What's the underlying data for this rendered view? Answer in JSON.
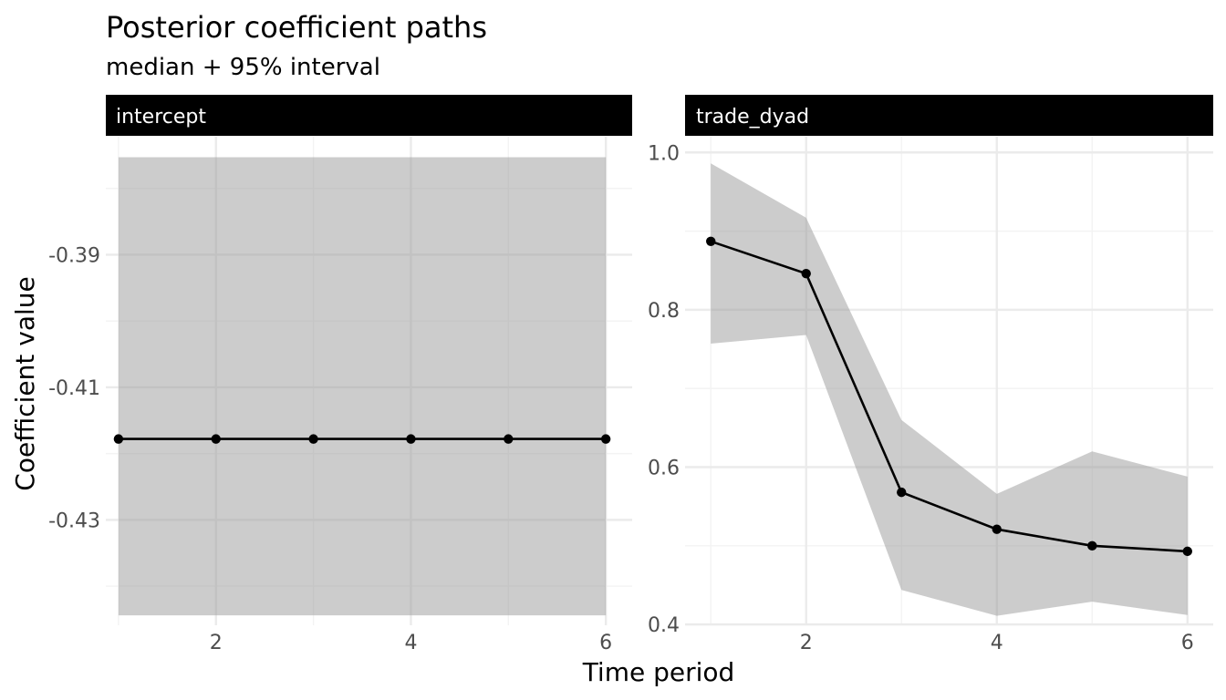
{
  "chart_data": {
    "type": "line",
    "title": "Posterior coefficient paths",
    "subtitle": "median + 95% interval",
    "xlabel": "Time period",
    "ylabel": "Coefficient value",
    "x_ticks": [
      2,
      4,
      6
    ],
    "grid": true,
    "panels": [
      {
        "label": "intercept",
        "x": [
          1,
          2,
          3,
          4,
          5,
          6
        ],
        "median": [
          -0.4178,
          -0.4178,
          -0.4178,
          -0.4178,
          -0.4178,
          -0.4178
        ],
        "lower": [
          -0.4444,
          -0.4444,
          -0.4444,
          -0.4444,
          -0.4444,
          -0.4444
        ],
        "upper": [
          -0.3753,
          -0.3753,
          -0.3753,
          -0.3753,
          -0.3753,
          -0.3753
        ],
        "xlim": [
          0.87,
          6.27
        ],
        "ylim": [
          -0.4459,
          -0.3722
        ],
        "y_ticks": [
          -0.43,
          -0.41,
          -0.39
        ],
        "y_tick_labels": [
          "-0.43",
          "-0.41",
          "-0.39"
        ],
        "y_minor_ticks": [
          -0.44,
          -0.42,
          -0.4,
          -0.38
        ]
      },
      {
        "label": "trade_dyad",
        "x": [
          1,
          2,
          3,
          4,
          5,
          6
        ],
        "median": [
          0.887,
          0.846,
          0.568,
          0.521,
          0.5,
          0.493
        ],
        "lower": [
          0.757,
          0.768,
          0.444,
          0.411,
          0.429,
          0.412
        ],
        "upper": [
          0.986,
          0.917,
          0.66,
          0.566,
          0.62,
          0.588
        ],
        "xlim": [
          0.73,
          6.27
        ],
        "ylim": [
          0.399,
          1.02
        ],
        "y_ticks": [
          0.4,
          0.6,
          0.8,
          1.0
        ],
        "y_tick_labels": [
          "0.4",
          "0.6",
          "0.8",
          "1.0"
        ],
        "y_minor_ticks": [
          0.5,
          0.7,
          0.9
        ]
      }
    ]
  }
}
